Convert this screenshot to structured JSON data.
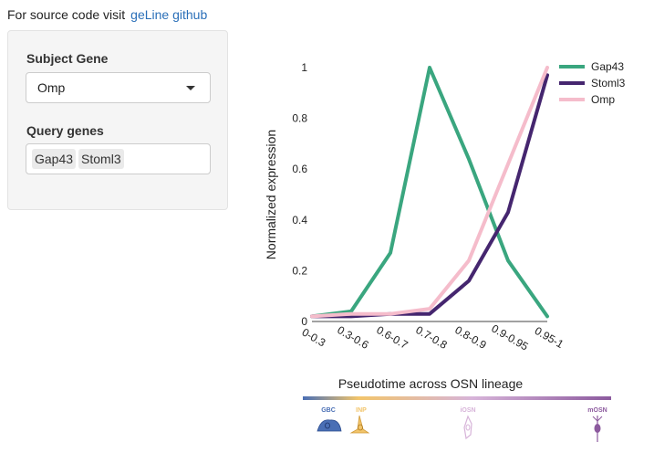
{
  "header": {
    "text": "For source code visit",
    "link": "geLine github"
  },
  "sidebar": {
    "subject_label": "Subject Gene",
    "subject_value": "Omp",
    "query_label": "Query genes",
    "query_tags": [
      "Gap43",
      "Stoml3"
    ]
  },
  "chart_data": {
    "type": "line",
    "categories": [
      "0-0.3",
      "0.3-0.6",
      "0.6-0.7",
      "0.7-0.8",
      "0.8-0.9",
      "0.9-0.95",
      "0.95-1"
    ],
    "series": [
      {
        "name": "Gap43",
        "color": "#3aa67f",
        "values": [
          0.02,
          0.04,
          0.27,
          1.0,
          0.64,
          0.24,
          0.02
        ]
      },
      {
        "name": "Stoml3",
        "color": "#45266f",
        "values": [
          0.02,
          0.02,
          0.03,
          0.03,
          0.16,
          0.43,
          0.97
        ]
      },
      {
        "name": "Omp",
        "color": "#f5bccb",
        "values": [
          0.02,
          0.03,
          0.03,
          0.05,
          0.24,
          0.62,
          1.0
        ]
      }
    ],
    "ylim": [
      0,
      1
    ],
    "yticks": [
      0,
      0.2,
      0.4,
      0.6,
      0.8,
      1
    ],
    "ytick_labels": [
      "0",
      "0.2",
      "0.4",
      "0.6",
      "0.8",
      "1"
    ],
    "xlabel": "Pseudotime across OSN lineage",
    "ylabel": "Normalized expression",
    "legend_position": "top-right",
    "lineage_stages": [
      {
        "label": "GBC",
        "color": "#4a6fb5"
      },
      {
        "label": "INP",
        "color": "#f2c56b"
      },
      {
        "label": "iOSN",
        "color": "#d7b4d9"
      },
      {
        "label": "mOSN",
        "color": "#8c5a9e"
      }
    ]
  }
}
